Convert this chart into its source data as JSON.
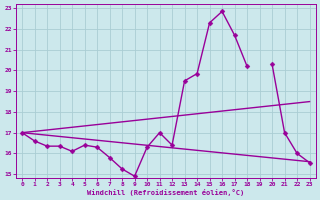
{
  "xlabel": "Windchill (Refroidissement éolien,°C)",
  "bg_color": "#cce8ec",
  "grid_color": "#aacdd4",
  "line_color": "#990099",
  "xlim": [
    -0.5,
    23.5
  ],
  "ylim": [
    14.8,
    23.2
  ],
  "xticks": [
    0,
    1,
    2,
    3,
    4,
    5,
    6,
    7,
    8,
    9,
    10,
    11,
    12,
    13,
    14,
    15,
    16,
    17,
    18,
    19,
    20,
    21,
    22,
    23
  ],
  "yticks": [
    15,
    16,
    17,
    18,
    19,
    20,
    21,
    22,
    23
  ],
  "series": [
    {
      "x": [
        0,
        1,
        2,
        3,
        4,
        5,
        6,
        7,
        8,
        9,
        10,
        11,
        12,
        13,
        14,
        15,
        16,
        17,
        18
      ],
      "y": [
        17.0,
        16.6,
        16.35,
        16.35,
        16.1,
        16.4,
        16.3,
        15.8,
        15.25,
        14.9,
        16.3,
        17.0,
        16.4,
        19.5,
        19.85,
        22.3,
        22.85,
        21.7,
        20.2
      ],
      "marker": "D",
      "markersize": 2.5,
      "linewidth": 1.0
    },
    {
      "x": [
        20,
        21,
        22,
        23
      ],
      "y": [
        20.3,
        17.0,
        16.0,
        15.55
      ],
      "marker": "D",
      "markersize": 2.5,
      "linewidth": 1.0
    },
    {
      "x": [
        0,
        23
      ],
      "y": [
        17.0,
        18.5
      ],
      "marker": null,
      "markersize": 0,
      "linewidth": 1.0
    },
    {
      "x": [
        0,
        23
      ],
      "y": [
        17.0,
        15.6
      ],
      "marker": null,
      "markersize": 0,
      "linewidth": 1.0
    }
  ]
}
